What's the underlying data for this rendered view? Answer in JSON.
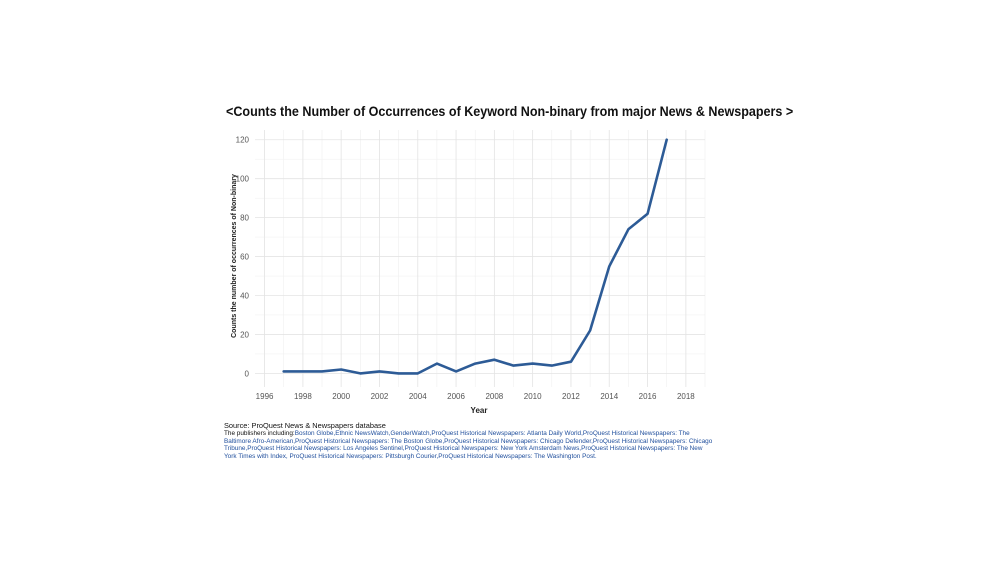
{
  "chart_data": {
    "type": "line",
    "title": "<Counts the Number of Occurrences of Keyword Non-binary from major News & Newspapers >",
    "xlabel": "Year",
    "ylabel": "Counts the number of occurrences of Non-binary",
    "xlim": [
      1995.5,
      2019
    ],
    "ylim": [
      -7,
      125
    ],
    "xticks": [
      1996,
      1998,
      2000,
      2002,
      2004,
      2006,
      2008,
      2010,
      2012,
      2014,
      2016,
      2018
    ],
    "yticks": [
      0,
      20,
      40,
      60,
      80,
      100,
      120
    ],
    "grid": true,
    "line_color": "#2d5b96",
    "series": [
      {
        "x": [
          1997,
          1998,
          1999,
          2000,
          2001,
          2002,
          2003,
          2004,
          2005,
          2006,
          2007,
          2008,
          2009,
          2010,
          2011,
          2012,
          2013,
          2014,
          2015,
          2016,
          2017
        ],
        "values": [
          1,
          1,
          1,
          2,
          0,
          1,
          0,
          0,
          5,
          1,
          5,
          7,
          4,
          5,
          4,
          6,
          22,
          55,
          74,
          82,
          120
        ]
      }
    ]
  },
  "caption": {
    "source": "Source: ProQuest News & Newspapers database",
    "publishers_label": "The publishers including:",
    "publishers": "Boston Globe,Ethnic NewsWatch,GenderWatch,ProQuest Historical Newspapers: Atlanta Daily World,ProQuest Historical Newspapers: The Baltimore Afro-American,ProQuest Historical Newspapers: The Boston Globe,ProQuest Historical Newspapers: Chicago Defender,ProQuest Historical Newspapers: Chicago Tribune,ProQuest Historical Newspapers: Los Angeles Sentinel,ProQuest Historical Newspapers: New York Amsterdam News,ProQuest Historical Newspapers: The New York Times with Index, ProQuest Historical Newspapers: Pittsburgh Courier,ProQuest Historical Newspapers: The Washington Post."
  }
}
